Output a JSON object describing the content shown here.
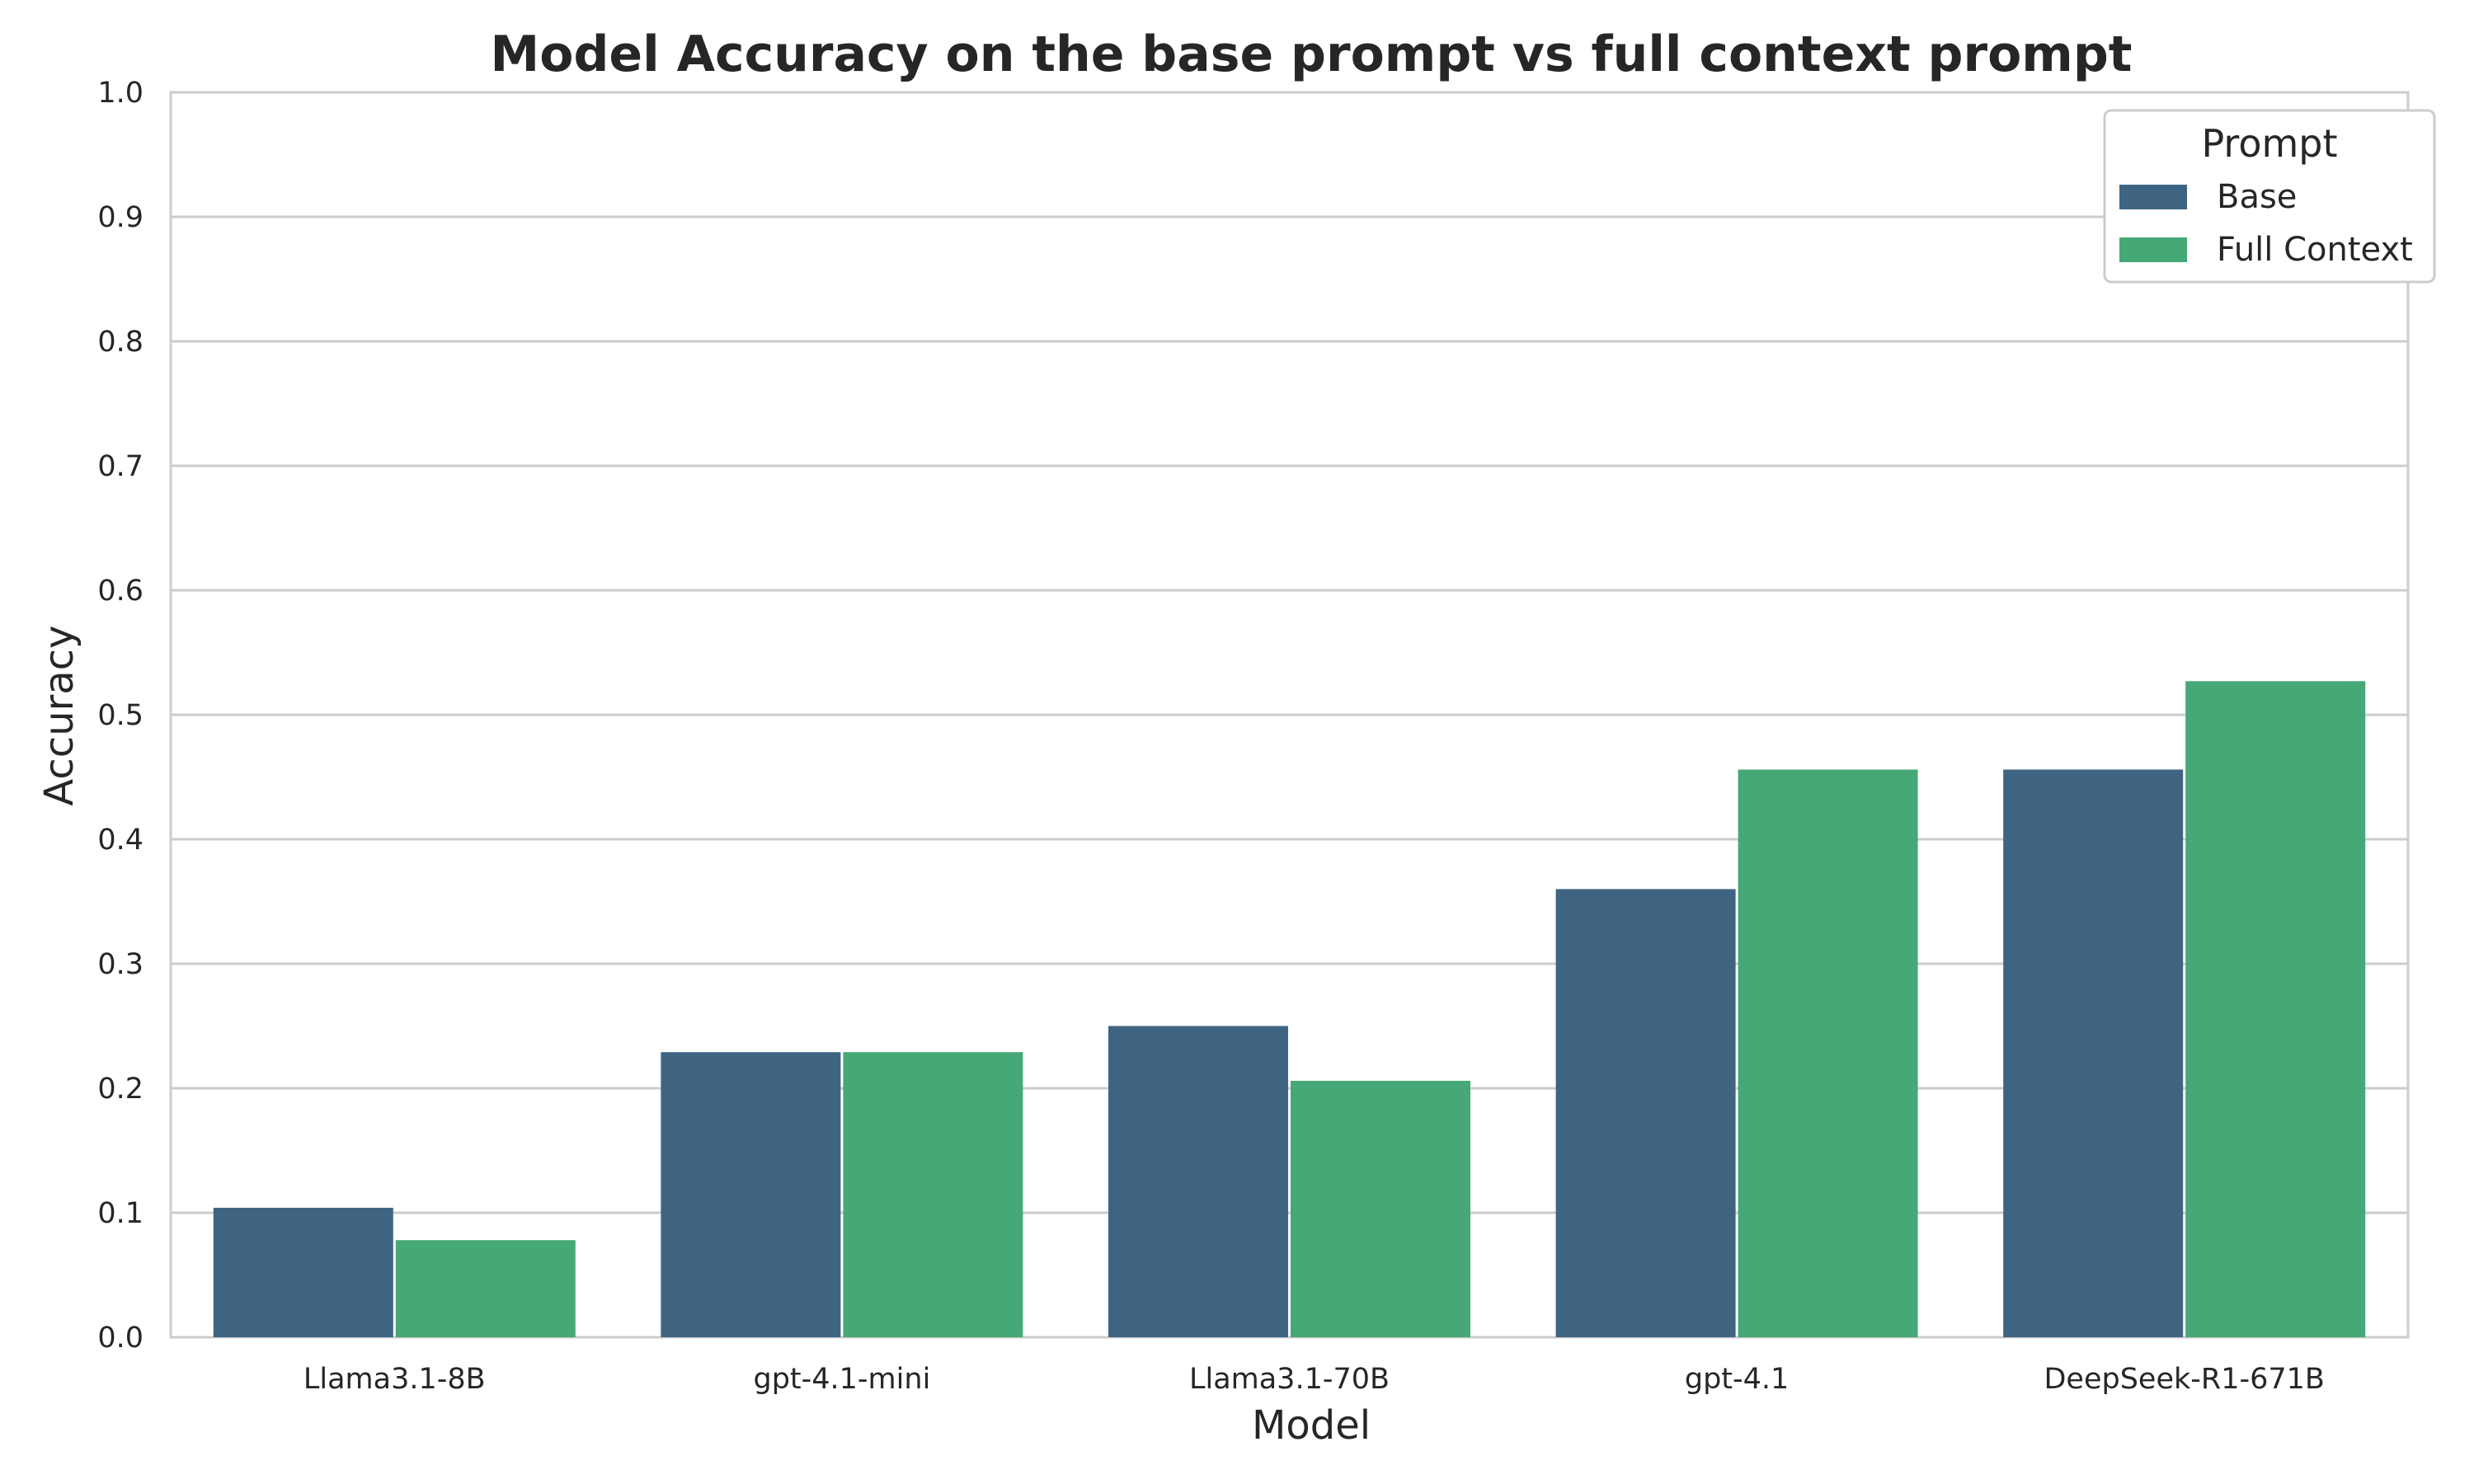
{
  "chart_data": {
    "type": "bar",
    "title": "Model Accuracy on the base prompt vs full context prompt",
    "xlabel": "Model",
    "ylabel": "Accuracy",
    "ylim": [
      0,
      1.0
    ],
    "yticks": [
      "0.0",
      "0.1",
      "0.2",
      "0.3",
      "0.4",
      "0.5",
      "0.6",
      "0.7",
      "0.8",
      "0.9",
      "1.0"
    ],
    "categories": [
      "Llama3.1-8B",
      "gpt-4.1-mini",
      "Llama3.1-70B",
      "gpt-4.1",
      "DeepSeek-R1-671B"
    ],
    "series": [
      {
        "name": "Base",
        "color": "#3e6482",
        "values": [
          0.104,
          0.229,
          0.25,
          0.36,
          0.456
        ]
      },
      {
        "name": "Full Context",
        "color": "#45a876",
        "values": [
          0.078,
          0.229,
          0.206,
          0.456,
          0.527
        ]
      }
    ],
    "legend": {
      "title": "Prompt",
      "position": "top-right"
    },
    "grid": true
  }
}
